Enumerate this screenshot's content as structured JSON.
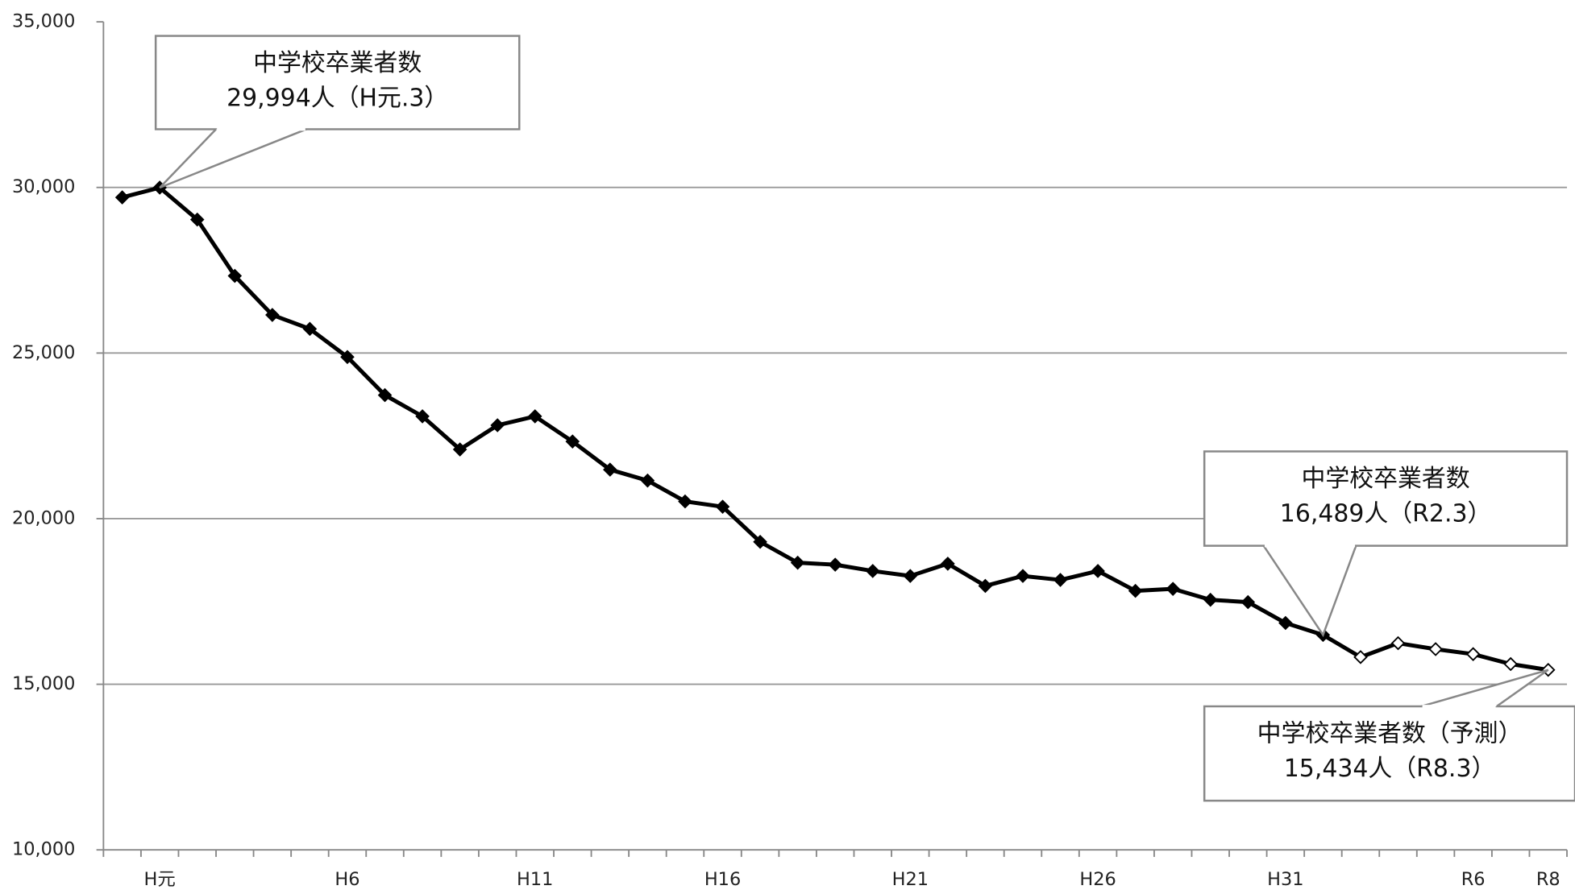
{
  "chart_data": {
    "type": "line",
    "categories": [
      null,
      "H元",
      null,
      null,
      null,
      null,
      "H6",
      null,
      null,
      null,
      null,
      "H11",
      null,
      null,
      null,
      null,
      "H16",
      null,
      null,
      null,
      null,
      "H21",
      null,
      null,
      null,
      null,
      "H26",
      null,
      null,
      null,
      null,
      "H31",
      null,
      null,
      null,
      null,
      "R6",
      null,
      "R8"
    ],
    "series": [
      {
        "color": "#000000",
        "values": [
          29700,
          29994,
          29030,
          27330,
          26150,
          25730,
          24880,
          23730,
          23090,
          22090,
          22820,
          23090,
          22330,
          21480,
          21150,
          20520,
          20360,
          19300,
          18670,
          18610,
          18420,
          18270,
          18640,
          17970,
          18270,
          18150,
          18420,
          17820,
          17880,
          17550,
          17480,
          16850,
          16489,
          15820,
          16240,
          16060,
          15910,
          15610,
          15434
        ],
        "marker_colors": [
          "#000000",
          "#000000",
          "#000000",
          "#000000",
          "#000000",
          "#000000",
          "#000000",
          "#000000",
          "#000000",
          "#000000",
          "#000000",
          "#000000",
          "#000000",
          "#000000",
          "#000000",
          "#000000",
          "#000000",
          "#000000",
          "#000000",
          "#000000",
          "#000000",
          "#000000",
          "#000000",
          "#000000",
          "#000000",
          "#000000",
          "#000000",
          "#000000",
          "#000000",
          "#000000",
          "#000000",
          "#000000",
          "#000000",
          "#ffffff",
          "#ffffff",
          "#ffffff",
          "#ffffff",
          "#ffffff",
          "#ffffff"
        ]
      }
    ],
    "ylim": [
      10000,
      35000
    ],
    "yticks": [
      {
        "value": 10000,
        "label": "10,000"
      },
      {
        "value": 15000,
        "label": "15,000"
      },
      {
        "value": 20000,
        "label": "20,000"
      },
      {
        "value": 25000,
        "label": "25,000"
      },
      {
        "value": 30000,
        "label": "30,000"
      },
      {
        "value": 35000,
        "label": "35,000"
      }
    ],
    "grid": true,
    "annotations": [
      {
        "lines": [
          "中学校卒業者数",
          "29,994人（H元.3）"
        ]
      },
      {
        "lines": [
          "中学校卒業者数",
          "16,489人（R2.3）"
        ]
      },
      {
        "lines": [
          "中学校卒業者数（予測）",
          "15,434人（R8.3）"
        ]
      }
    ]
  }
}
